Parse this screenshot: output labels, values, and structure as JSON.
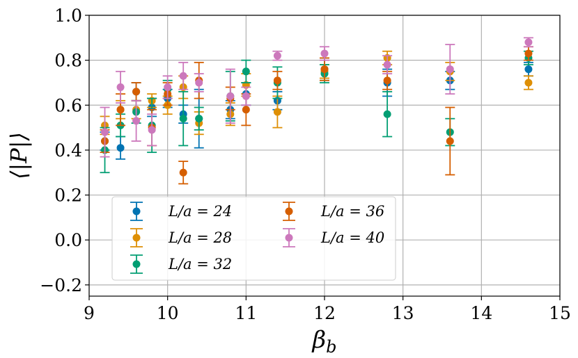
{
  "chart_data": {
    "type": "scatter",
    "title": "",
    "xlabel": "βb",
    "ylabel": "⟨|P|⟩",
    "xlim": [
      9,
      15
    ],
    "ylim": [
      -0.25,
      1.0
    ],
    "xticks": [
      "9",
      "10",
      "11",
      "12",
      "13",
      "14",
      "15"
    ],
    "yticks": [
      "−0.2",
      "0.0",
      "0.2",
      "0.4",
      "0.6",
      "0.8",
      "1.0"
    ],
    "ytick_values": [
      -0.2,
      0.0,
      0.2,
      0.4,
      0.6,
      0.8,
      1.0
    ],
    "xtick_values": [
      9,
      10,
      11,
      12,
      13,
      14,
      15
    ],
    "grid": true,
    "legend_position": "lower-left",
    "series": [
      {
        "name": "L/a = 24",
        "color": "#0173b2",
        "x": [
          9.2,
          9.4,
          9.6,
          9.8,
          10.0,
          10.2,
          10.4,
          10.8,
          11.0,
          11.4,
          12.0,
          12.8,
          13.6,
          14.6
        ],
        "y": [
          0.44,
          0.41,
          0.66,
          0.59,
          0.63,
          0.56,
          0.54,
          0.58,
          0.65,
          0.62,
          0.76,
          0.7,
          0.71,
          0.76
        ],
        "err": [
          0.04,
          0.05,
          0.04,
          0.04,
          0.04,
          0.04,
          0.13,
          0.04,
          0.05,
          0.04,
          0.05,
          0.06,
          0.04,
          0.03
        ]
      },
      {
        "name": "L/a = 28",
        "color": "#de8f05",
        "x": [
          9.2,
          9.4,
          9.6,
          9.8,
          10.0,
          10.2,
          10.4,
          10.8,
          11.0,
          11.4,
          12.0,
          12.8,
          13.6,
          14.6
        ],
        "y": [
          0.51,
          0.58,
          0.58,
          0.62,
          0.6,
          0.68,
          0.52,
          0.56,
          0.69,
          0.57,
          0.75,
          0.81,
          0.75,
          0.7
        ],
        "err": [
          0.04,
          0.04,
          0.04,
          0.03,
          0.04,
          0.05,
          0.05,
          0.05,
          0.05,
          0.07,
          0.03,
          0.03,
          0.04,
          0.03
        ]
      },
      {
        "name": "L/a = 32",
        "color": "#029e73",
        "x": [
          9.2,
          9.4,
          9.6,
          9.8,
          10.0,
          10.2,
          10.4,
          10.8,
          11.0,
          11.4,
          12.0,
          12.8,
          13.6,
          14.6
        ],
        "y": [
          0.4,
          0.51,
          0.57,
          0.51,
          0.67,
          0.54,
          0.54,
          0.64,
          0.75,
          0.7,
          0.74,
          0.56,
          0.48,
          0.81
        ],
        "err": [
          0.1,
          0.05,
          0.05,
          0.12,
          0.04,
          0.12,
          0.05,
          0.11,
          0.05,
          0.07,
          0.04,
          0.1,
          0.06,
          0.03
        ]
      },
      {
        "name": "L/a = 36",
        "color": "#d55e00",
        "x": [
          9.2,
          9.4,
          9.6,
          9.8,
          10.0,
          10.2,
          10.4,
          10.8,
          11.0,
          11.4,
          12.0,
          12.8,
          13.6,
          14.6
        ],
        "y": [
          0.44,
          0.58,
          0.66,
          0.5,
          0.65,
          0.3,
          0.71,
          0.63,
          0.58,
          0.71,
          0.76,
          0.71,
          0.44,
          0.83
        ],
        "err": [
          0.05,
          0.07,
          0.04,
          0.08,
          0.05,
          0.05,
          0.08,
          0.05,
          0.07,
          0.04,
          0.05,
          0.04,
          0.15,
          0.03
        ]
      },
      {
        "name": "L/a = 40",
        "color": "#cc78bc",
        "x": [
          9.2,
          9.4,
          9.6,
          9.8,
          10.0,
          10.2,
          10.4,
          10.8,
          11.0,
          11.4,
          12.0,
          12.8,
          13.6,
          14.6
        ],
        "y": [
          0.48,
          0.68,
          0.53,
          0.49,
          0.68,
          0.73,
          0.7,
          0.64,
          0.64,
          0.82,
          0.83,
          0.78,
          0.76,
          0.88
        ],
        "err": [
          0.11,
          0.07,
          0.09,
          0.07,
          0.05,
          0.06,
          0.04,
          0.12,
          0.04,
          0.02,
          0.03,
          0.04,
          0.11,
          0.02
        ]
      }
    ]
  }
}
